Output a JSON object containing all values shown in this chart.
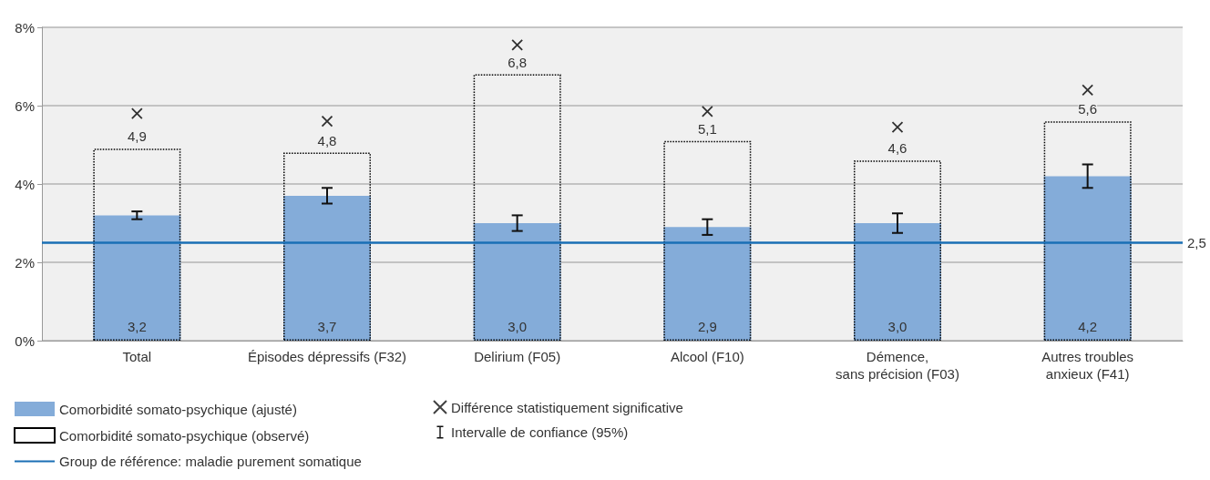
{
  "chart_data": {
    "type": "bar",
    "categories": [
      "Total",
      "Épisodes dépressifs (F32)",
      "Delirium (F05)",
      "Alcool (F10)",
      "Démence,\nsans précision (F03)",
      "Autres troubles\nanxieux (F41)"
    ],
    "series": [
      {
        "name": "Comorbidité somato-psychique (ajusté)",
        "color": "#84acd9",
        "values": [
          3.2,
          3.7,
          3.0,
          2.9,
          3.0,
          4.2
        ],
        "errors": [
          [
            3.1,
            3.3
          ],
          [
            3.5,
            3.9
          ],
          [
            2.8,
            3.2
          ],
          [
            2.7,
            3.1
          ],
          [
            2.75,
            3.25
          ],
          [
            3.9,
            4.5
          ]
        ],
        "value_labels": [
          "3,2",
          "3,7",
          "3,0",
          "2,9",
          "3,0",
          "4,2"
        ]
      },
      {
        "name": "Comorbidité somato-psychique (observé)",
        "color": "#000000",
        "line_style": "dotted",
        "values": [
          4.9,
          4.8,
          6.8,
          5.1,
          4.6,
          5.6
        ],
        "value_labels": [
          "4,9",
          "4,8",
          "6,8",
          "5,1",
          "4,6",
          "5,6"
        ]
      },
      {
        "name": "Différence statistiquement significative",
        "type": "scatter",
        "marker": "cross",
        "color": "#000000",
        "x": [
          "Total",
          "Épisodes dépressifs (F32)",
          "Delirium (F05)",
          "Alcool (F10)",
          "Démence,\nsans précision (F03)",
          "Autres troubles\nanxieux (F41)"
        ],
        "values": [
          5.8,
          5.6,
          7.55,
          5.85,
          5.45,
          6.4
        ]
      }
    ],
    "annotations": [
      "Group de référence: maladie purement somatique",
      "Intervalle de confiance (95%)"
    ],
    "ref_lines": [
      {
        "axis": "y",
        "value": 2.5,
        "label": "2,5",
        "color": "#1a6fb5"
      }
    ],
    "ylim": [
      0,
      8
    ],
    "yticks": [
      {
        "value": 0,
        "label": "0%"
      },
      {
        "value": 2,
        "label": "2%"
      },
      {
        "value": 4,
        "label": "4%"
      },
      {
        "value": 6,
        "label": "6%"
      },
      {
        "value": 8,
        "label": "8%"
      }
    ],
    "grid": "y",
    "legend": "bottom left"
  }
}
